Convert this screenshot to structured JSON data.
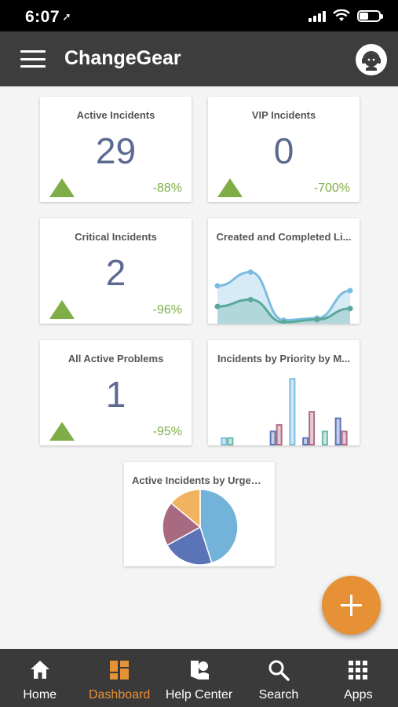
{
  "status_bar": {
    "time": "6:07",
    "location_glyph": "➚"
  },
  "header": {
    "title": "ChangeGear",
    "menu_icon": "hamburger-menu-icon",
    "avatar_icon": "support-agent-icon"
  },
  "cards": {
    "active_incidents": {
      "title": "Active Incidents",
      "value": "29",
      "change": "-88%",
      "trend": "up"
    },
    "vip_incidents": {
      "title": "VIP Incidents",
      "value": "0",
      "change": "-700%",
      "trend": "up"
    },
    "critical_incidents": {
      "title": "Critical Incidents",
      "value": "2",
      "change": "-96%",
      "trend": "up"
    },
    "all_active_problems": {
      "title": "All Active Problems",
      "value": "1",
      "change": "-95%",
      "trend": "up"
    },
    "created_completed": {
      "title": "Created and Completed Li..."
    },
    "incidents_by_priority": {
      "title": "Incidents by Priority by M..."
    },
    "incidents_by_urgency": {
      "title": "Active Incidents by Urgency"
    }
  },
  "chart_data": [
    {
      "type": "area",
      "title": "Created and Completed Li...",
      "x": [
        1,
        2,
        3,
        4,
        5
      ],
      "series": [
        {
          "color": "#7bbde0",
          "values": [
            5.5,
            7.5,
            0.5,
            0.8,
            4.8
          ]
        },
        {
          "color": "#5aa89a",
          "values": [
            2.5,
            3.5,
            0.2,
            0.6,
            2.2
          ]
        }
      ],
      "ylim": [
        0,
        8
      ]
    },
    {
      "type": "bar",
      "title": "Incidents by Priority by M...",
      "x": [
        1,
        2,
        3,
        4,
        5,
        6,
        7,
        8
      ],
      "series": [
        {
          "color": "#7bbde0",
          "values": [
            1,
            0,
            0,
            0,
            10,
            0,
            0,
            0
          ]
        },
        {
          "color": "#6bb8a8",
          "values": [
            1,
            0,
            0,
            0,
            0,
            0,
            2,
            0
          ]
        },
        {
          "color": "#5b74b8",
          "values": [
            0,
            0,
            0,
            2,
            0,
            1,
            0,
            4
          ]
        },
        {
          "color": "#b06c82",
          "values": [
            0,
            0,
            0,
            3,
            0,
            5,
            0,
            2
          ]
        }
      ],
      "ylim": [
        0,
        11
      ]
    },
    {
      "type": "pie",
      "title": "Active Incidents by Urgency",
      "values": [
        45,
        22,
        19,
        14
      ],
      "colors": [
        "#74b3d9",
        "#5b74b8",
        "#a86a80",
        "#f0b460"
      ]
    }
  ],
  "fab": {
    "icon": "plus-icon"
  },
  "nav": {
    "items": [
      {
        "label": "Home",
        "icon": "home-icon"
      },
      {
        "label": "Dashboard",
        "icon": "dashboard-icon"
      },
      {
        "label": "Help Center",
        "icon": "help-center-icon"
      },
      {
        "label": "Search",
        "icon": "search-icon"
      },
      {
        "label": "Apps",
        "icon": "apps-grid-icon"
      }
    ],
    "active": "Dashboard",
    "active_color": "#e69136"
  },
  "colors": {
    "accent": "#e69136",
    "trend_green": "#7fae48",
    "value_color": "#5c6a92",
    "header_bg": "#3d3d3d"
  }
}
